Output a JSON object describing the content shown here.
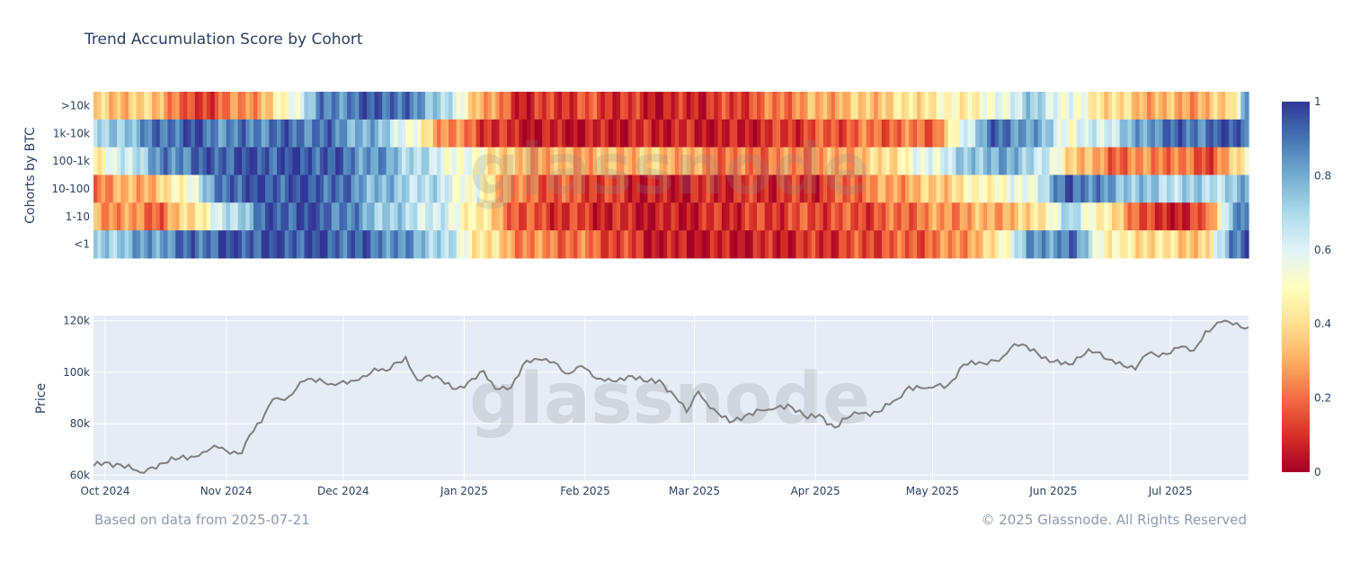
{
  "title": "Trend Accumulation Score by Cohort",
  "footer": {
    "left": "Based on data from 2025-07-21",
    "right": "© 2025 Glassnode. All Rights Reserved"
  },
  "watermark": "glassnode",
  "chart_data": [
    {
      "type": "heatmap",
      "ylabel": "Cohorts by BTC",
      "rows": [
        ">10k",
        "1k-10k",
        "100-1k",
        "10-100",
        "1-10",
        "<1"
      ],
      "x_range": [
        "2024-09-28",
        "2025-07-21"
      ],
      "colorscale": {
        "min": 0,
        "max": 1,
        "ticks": [
          "0",
          "0.2",
          "0.4",
          "0.6",
          "0.8",
          "1"
        ],
        "colors": [
          "#a50026",
          "#d73027",
          "#f46d43",
          "#fdae61",
          "#fee090",
          "#ffffbf",
          "#e0f3f8",
          "#abd9e9",
          "#74add1",
          "#4575b4",
          "#313695"
        ]
      },
      "keyframes": [
        {
          "date": "2024-09-28",
          "values": [
            0.35,
            0.65,
            0.45,
            0.25,
            0.3,
            0.7
          ]
        },
        {
          "date": "2024-10-15",
          "values": [
            0.35,
            0.9,
            0.85,
            0.35,
            0.2,
            0.85
          ]
        },
        {
          "date": "2024-10-22",
          "values": [
            0.1,
            0.95,
            0.9,
            0.55,
            0.4,
            0.9
          ]
        },
        {
          "date": "2024-11-01",
          "values": [
            0.2,
            0.85,
            0.95,
            0.95,
            0.65,
            0.95
          ]
        },
        {
          "date": "2024-11-12",
          "values": [
            0.35,
            0.9,
            0.95,
            0.95,
            0.95,
            0.95
          ]
        },
        {
          "date": "2024-11-25",
          "values": [
            0.85,
            0.9,
            0.95,
            0.95,
            0.95,
            0.95
          ]
        },
        {
          "date": "2024-12-12",
          "values": [
            0.95,
            0.72,
            0.8,
            0.75,
            0.72,
            0.88
          ]
        },
        {
          "date": "2024-12-25",
          "values": [
            0.75,
            0.3,
            0.6,
            0.65,
            0.62,
            0.72
          ]
        },
        {
          "date": "2025-01-04",
          "values": [
            0.35,
            0.15,
            0.5,
            0.5,
            0.45,
            0.45
          ]
        },
        {
          "date": "2025-01-15",
          "values": [
            0.08,
            0.05,
            0.3,
            0.2,
            0.15,
            0.25
          ]
        },
        {
          "date": "2025-02-01",
          "values": [
            0.15,
            0.05,
            0.3,
            0.15,
            0.1,
            0.2
          ]
        },
        {
          "date": "2025-02-20",
          "values": [
            0.06,
            0.08,
            0.35,
            0.05,
            0.05,
            0.05
          ]
        },
        {
          "date": "2025-03-10",
          "values": [
            0.12,
            0.05,
            0.2,
            0.1,
            0.1,
            0.05
          ]
        },
        {
          "date": "2025-04-01",
          "values": [
            0.3,
            0.15,
            0.25,
            0.1,
            0.15,
            0.1
          ]
        },
        {
          "date": "2025-04-15",
          "values": [
            0.35,
            0.2,
            0.35,
            0.25,
            0.15,
            0.15
          ]
        },
        {
          "date": "2025-05-01",
          "values": [
            0.45,
            0.2,
            0.6,
            0.35,
            0.25,
            0.2
          ]
        },
        {
          "date": "2025-05-15",
          "values": [
            0.5,
            0.9,
            0.8,
            0.5,
            0.3,
            0.35
          ]
        },
        {
          "date": "2025-05-25",
          "values": [
            0.72,
            0.85,
            0.75,
            0.55,
            0.35,
            0.8
          ]
        },
        {
          "date": "2025-06-05",
          "values": [
            0.55,
            0.55,
            0.4,
            0.95,
            0.7,
            0.9
          ]
        },
        {
          "date": "2025-06-15",
          "values": [
            0.4,
            0.65,
            0.2,
            0.8,
            0.4,
            0.45
          ]
        },
        {
          "date": "2025-06-28",
          "values": [
            0.3,
            0.9,
            0.25,
            0.7,
            0.05,
            0.4
          ]
        },
        {
          "date": "2025-07-10",
          "values": [
            0.3,
            0.9,
            0.15,
            0.7,
            0.15,
            0.35
          ]
        },
        {
          "date": "2025-07-16",
          "values": [
            0.4,
            0.95,
            0.3,
            0.7,
            0.8,
            0.9
          ]
        },
        {
          "date": "2025-07-21",
          "values": [
            0.95,
            0.95,
            0.55,
            0.8,
            0.9,
            0.95
          ]
        }
      ]
    },
    {
      "type": "line",
      "ylabel": "Price",
      "x_range": [
        "2024-09-28",
        "2025-07-21"
      ],
      "ylim": [
        58000,
        122000
      ],
      "yticks": [
        60000,
        80000,
        100000,
        120000
      ],
      "ytick_labels": [
        "60k",
        "80k",
        "100k",
        "120k"
      ],
      "xticks": [
        "2024-10-01",
        "2024-11-01",
        "2024-12-01",
        "2025-01-01",
        "2025-02-01",
        "2025-03-01",
        "2025-04-01",
        "2025-05-01",
        "2025-06-01",
        "2025-07-01"
      ],
      "xtick_labels": [
        "Oct 2024",
        "Nov 2024",
        "Dec 2024",
        "Jan 2025",
        "Feb 2025",
        "Mar 2025",
        "Apr 2025",
        "May 2025",
        "Jun 2025",
        "Jul 2025"
      ],
      "line_color": "#7f7f7f",
      "series": [
        {
          "x": [
            "2024-09-28",
            "2024-10-01",
            "2024-10-05",
            "2024-10-10",
            "2024-10-15",
            "2024-10-20",
            "2024-10-25",
            "2024-10-29",
            "2024-11-01",
            "2024-11-05",
            "2024-11-07",
            "2024-11-10",
            "2024-11-13",
            "2024-11-17",
            "2024-11-21",
            "2024-11-25",
            "2024-11-28",
            "2024-12-02",
            "2024-12-05",
            "2024-12-09",
            "2024-12-12",
            "2024-12-17",
            "2024-12-20",
            "2024-12-25",
            "2024-12-30",
            "2025-01-01",
            "2025-01-06",
            "2025-01-09",
            "2025-01-13",
            "2025-01-17",
            "2025-01-20",
            "2025-01-24",
            "2025-01-27",
            "2025-01-31",
            "2025-02-04",
            "2025-02-08",
            "2025-02-12",
            "2025-02-16",
            "2025-02-20",
            "2025-02-25",
            "2025-02-27",
            "2025-03-02",
            "2025-03-05",
            "2025-03-10",
            "2025-03-15",
            "2025-03-20",
            "2025-03-25",
            "2025-03-30",
            "2025-04-02",
            "2025-04-06",
            "2025-04-09",
            "2025-04-12",
            "2025-04-17",
            "2025-04-22",
            "2025-04-25",
            "2025-04-30",
            "2025-05-05",
            "2025-05-09",
            "2025-05-14",
            "2025-05-19",
            "2025-05-22",
            "2025-05-27",
            "2025-05-31",
            "2025-06-05",
            "2025-06-10",
            "2025-06-15",
            "2025-06-18",
            "2025-06-22",
            "2025-06-25",
            "2025-06-30",
            "2025-07-03",
            "2025-07-07",
            "2025-07-10",
            "2025-07-14",
            "2025-07-17",
            "2025-07-21"
          ],
          "y": [
            63500,
            65000,
            64000,
            61000,
            64500,
            66500,
            67500,
            71500,
            69500,
            68500,
            75500,
            80500,
            89500,
            90500,
            96500,
            97500,
            95500,
            95500,
            97000,
            101500,
            100500,
            106000,
            97000,
            98500,
            93500,
            94000,
            100500,
            93500,
            94000,
            104500,
            105000,
            104000,
            99500,
            102500,
            97500,
            96500,
            98500,
            96500,
            97000,
            88500,
            84500,
            92500,
            86000,
            80500,
            84000,
            85500,
            87500,
            82000,
            83500,
            78500,
            82000,
            84000,
            84500,
            89500,
            94500,
            94000,
            95000,
            103000,
            103500,
            106000,
            111000,
            109000,
            104000,
            103000,
            109000,
            105000,
            104000,
            101000,
            107000,
            107000,
            109500,
            108500,
            116000,
            119500,
            118500,
            117500
          ]
        }
      ]
    }
  ]
}
